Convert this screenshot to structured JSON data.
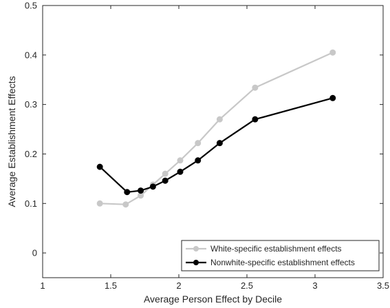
{
  "chart_data": {
    "type": "line",
    "title": "",
    "xlabel": "Average Person Effect by Decile",
    "ylabel": "Average Establishment Effects",
    "xlim": [
      1,
      3.5
    ],
    "ylim": [
      -0.05,
      0.5
    ],
    "xticks": [
      1,
      1.5,
      2,
      2.5,
      3,
      3.5
    ],
    "xtick_labels": [
      "1",
      "1.5",
      "2",
      "2.5",
      "3",
      "3.5"
    ],
    "yticks": [
      0,
      0.1,
      0.2,
      0.3,
      0.4,
      0.5
    ],
    "ytick_labels": [
      "0",
      "0.1",
      "0.2",
      "0.3",
      "0.4",
      "0.5"
    ],
    "grid": false,
    "legend_position": "bottom-right",
    "series": [
      {
        "name": "White-specific establishment effects",
        "color": "#c8c8c8",
        "x": [
          1.42,
          1.61,
          1.72,
          1.81,
          1.9,
          2.01,
          2.14,
          2.3,
          2.56,
          3.13
        ],
        "y": [
          0.1,
          0.098,
          0.116,
          0.138,
          0.16,
          0.187,
          0.222,
          0.27,
          0.334,
          0.405
        ]
      },
      {
        "name": "Nonwhite-specific establishment effects",
        "color": "#000000",
        "x": [
          1.42,
          1.62,
          1.72,
          1.81,
          1.9,
          2.01,
          2.14,
          2.3,
          2.56,
          3.13
        ],
        "y": [
          0.174,
          0.123,
          0.126,
          0.134,
          0.146,
          0.164,
          0.187,
          0.222,
          0.27,
          0.313
        ]
      }
    ]
  }
}
